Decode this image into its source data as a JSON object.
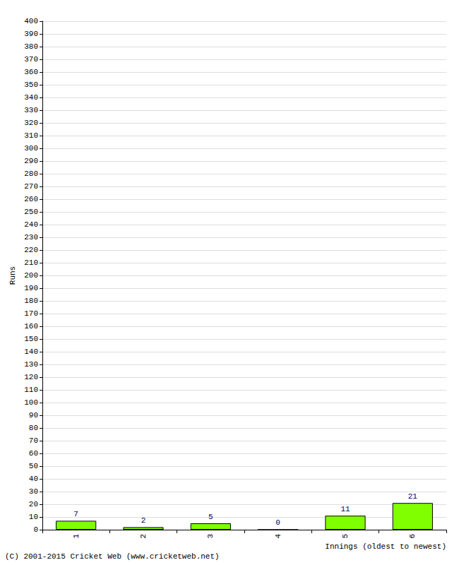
{
  "chart_data": {
    "type": "bar",
    "y_label": "Runs",
    "x_label": "Innings (oldest to newest)",
    "annotations": [
      "(C) 2001-2015 Cricket Web (www.cricketweb.net)"
    ],
    "categories": [
      "1",
      "2",
      "3",
      "4",
      "5",
      "6"
    ],
    "values": [
      7,
      2,
      5,
      0,
      11,
      21
    ],
    "color": "#80ff00",
    "data_labels": true,
    "ylim": [
      0,
      400
    ],
    "yticks": [
      0,
      10,
      20,
      30,
      40,
      50,
      60,
      70,
      80,
      90,
      100,
      110,
      120,
      130,
      140,
      150,
      160,
      170,
      180,
      190,
      200,
      210,
      220,
      230,
      240,
      250,
      260,
      270,
      280,
      290,
      300,
      310,
      320,
      330,
      340,
      350,
      360,
      370,
      380,
      390,
      400
    ],
    "grid": true
  }
}
